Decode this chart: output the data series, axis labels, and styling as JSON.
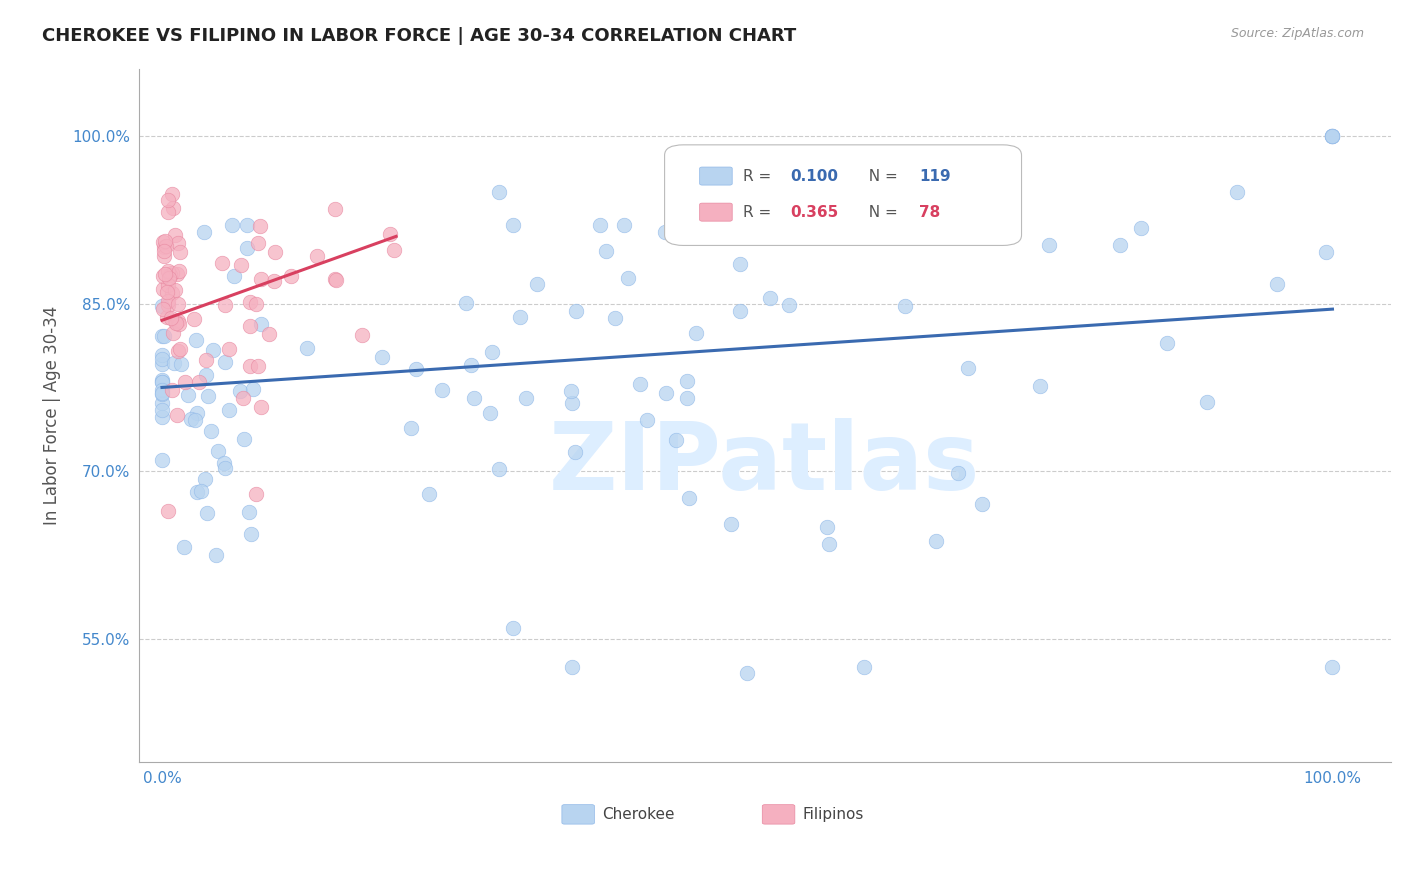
{
  "title": "CHEROKEE VS FILIPINO IN LABOR FORCE | AGE 30-34 CORRELATION CHART",
  "source": "Source: ZipAtlas.com",
  "ylabel_label": "In Labor Force | Age 30-34",
  "cherokee_color": "#b8d4f0",
  "cherokee_edge": "#90b8e8",
  "filipino_color": "#f5b0c0",
  "filipino_edge": "#e888a0",
  "cherokee_line_color": "#3a6ab0",
  "filipino_line_color": "#d84060",
  "watermark": "ZIPatlas",
  "watermark_color": "#ddeeff",
  "r_cherokee": "0.100",
  "n_cherokee": "119",
  "r_filipino": "0.365",
  "n_filipino": "78",
  "ytick_labels": [
    "55.0%",
    "70.0%",
    "85.0%",
    "100.0%"
  ],
  "ytick_vals": [
    0.55,
    0.7,
    0.85,
    1.0
  ],
  "xlim": [
    -0.02,
    1.05
  ],
  "ylim": [
    0.44,
    1.06
  ],
  "cherokee_line_x": [
    0.0,
    1.0
  ],
  "cherokee_line_y": [
    0.775,
    0.845
  ],
  "filipino_line_x": [
    0.0,
    0.2
  ],
  "filipino_line_y": [
    0.835,
    0.91
  ],
  "legend_r_color": "#3a6ab0",
  "legend_r2_color": "#d84060",
  "tick_color": "#4488cc"
}
